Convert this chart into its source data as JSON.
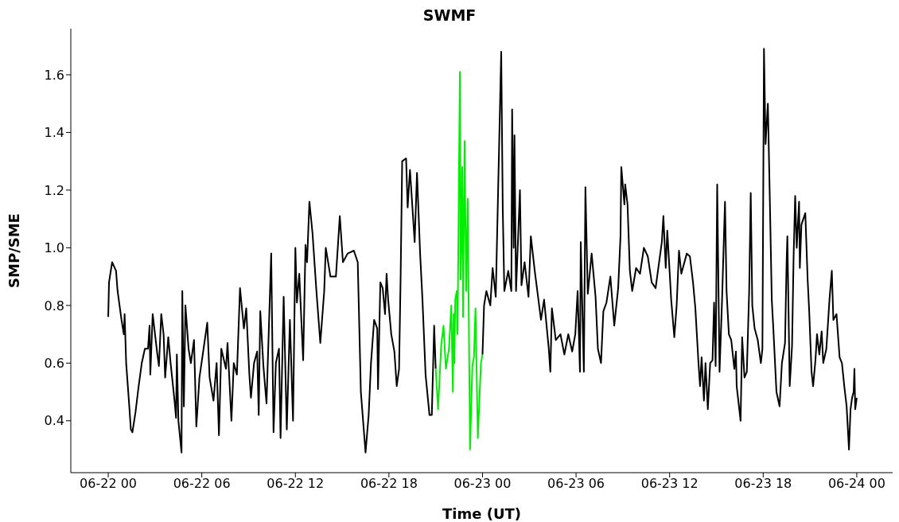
{
  "chart_data": {
    "type": "line",
    "title": "SWMF",
    "xlabel": "Time (UT)",
    "ylabel": "SMP/SME",
    "xlim": [
      "--06-21T21:36",
      "--06-24T02:18"
    ],
    "ylim": [
      0.22,
      1.76
    ],
    "xticks": [
      {
        "value": "--06-22T00:00",
        "label": "06-22 00"
      },
      {
        "value": "--06-22T06:00",
        "label": "06-22 06"
      },
      {
        "value": "--06-22T12:00",
        "label": "06-22 12"
      },
      {
        "value": "--06-22T18:00",
        "label": "06-22 18"
      },
      {
        "value": "--06-23T00:00",
        "label": "06-23 00"
      },
      {
        "value": "--06-23T06:00",
        "label": "06-23 06"
      },
      {
        "value": "--06-23T12:00",
        "label": "06-23 12"
      },
      {
        "value": "--06-23T18:00",
        "label": "06-23 18"
      },
      {
        "value": "--06-24T00:00",
        "label": "06-24 00"
      }
    ],
    "yticks": [
      0.4,
      0.6,
      0.8,
      {
        "value": 1,
        "label": "1.0"
      },
      1.2,
      1.4,
      1.6
    ],
    "series": [
      {
        "color": "#000000",
        "x": [
          "--06-22T00:00",
          "--06-22T00:03",
          "--06-22T00:15",
          "--06-22T00:30",
          "--06-22T00:36",
          "--06-22T00:51",
          "--06-22T01:00",
          "--06-22T01:03",
          "--06-22T01:09",
          "--06-22T01:21",
          "--06-22T01:27",
          "--06-22T01:33",
          "--06-22T01:45",
          "--06-22T01:57",
          "--06-22T02:09",
          "--06-22T02:21",
          "--06-22T02:33",
          "--06-22T02:39",
          "--06-22T02:42",
          "--06-22T02:51",
          "--06-22T03:09",
          "--06-22T03:15",
          "--06-22T03:24",
          "--06-22T03:33",
          "--06-22T03:39",
          "--06-22T03:51",
          "--06-22T04:00",
          "--06-22T04:15",
          "--06-22T04:21",
          "--06-22T04:24",
          "--06-22T04:30",
          "--06-22T04:42",
          "--06-22T04:45",
          "--06-22T04:51",
          "--06-22T04:57",
          "--06-22T05:09",
          "--06-22T05:18",
          "--06-22T05:30",
          "--06-22T05:39",
          "--06-22T05:51",
          "--06-22T06:21",
          "--06-22T06:30",
          "--06-22T06:45",
          "--06-22T06:57",
          "--06-22T07:06",
          "--06-22T07:15",
          "--06-22T07:33",
          "--06-22T07:39",
          "--06-22T07:54",
          "--06-22T08:03",
          "--06-22T08:15",
          "--06-22T08:27",
          "--06-22T08:42",
          "--06-22T08:51",
          "--06-22T09:03",
          "--06-22T09:09",
          "--06-22T09:21",
          "--06-22T09:33",
          "--06-22T09:39",
          "--06-22T09:45",
          "--06-22T09:57",
          "--06-22T10:09",
          "--06-22T10:27",
          "--06-22T10:36",
          "--06-22T10:45",
          "--06-22T10:57",
          "--06-22T11:03",
          "--06-22T11:15",
          "--06-22T11:27",
          "--06-22T11:39",
          "--06-22T11:51",
          "--06-22T12:00",
          "--06-22T12:06",
          "--06-22T12:15",
          "--06-22T12:30",
          "--06-22T12:39",
          "--06-22T12:45",
          "--06-22T12:54",
          "--06-22T13:06",
          "--06-22T13:21",
          "--06-22T13:36",
          "--06-22T13:51",
          "--06-22T13:57",
          "--06-22T14:15",
          "--06-22T14:36",
          "--06-22T14:51",
          "--06-22T15:03",
          "--06-22T15:21",
          "--06-22T15:45",
          "--06-22T16:00",
          "--06-22T16:12",
          "--06-22T16:30",
          "--06-22T16:42",
          "--06-22T16:51",
          "--06-22T17:03",
          "--06-22T17:15",
          "--06-22T17:18",
          "--06-22T17:27",
          "--06-22T17:36",
          "--06-22T17:45",
          "--06-22T17:51",
          "--06-22T17:57",
          "--06-22T18:09",
          "--06-22T18:21",
          "--06-22T18:30",
          "--06-22T18:39",
          "--06-22T18:45",
          "--06-22T18:51",
          "--06-22T19:06",
          "--06-22T19:12",
          "--06-22T19:21",
          "--06-22T19:39",
          "--06-22T19:48",
          "--06-22T20:00",
          "--06-22T20:09",
          "--06-22T20:21",
          "--06-22T20:36",
          "--06-22T20:45",
          "--06-22T20:54",
          "--06-22T21:00"
        ],
        "values": [
          0.76,
          0.88,
          0.95,
          0.92,
          0.85,
          0.75,
          0.7,
          0.77,
          0.6,
          0.45,
          0.37,
          0.36,
          0.43,
          0.52,
          0.6,
          0.65,
          0.65,
          0.73,
          0.56,
          0.77,
          0.63,
          0.59,
          0.77,
          0.7,
          0.55,
          0.69,
          0.6,
          0.47,
          0.41,
          0.63,
          0.4,
          0.29,
          0.85,
          0.45,
          0.8,
          0.65,
          0.6,
          0.68,
          0.38,
          0.55,
          0.74,
          0.55,
          0.47,
          0.6,
          0.35,
          0.65,
          0.58,
          0.67,
          0.4,
          0.6,
          0.56,
          0.86,
          0.72,
          0.79,
          0.56,
          0.48,
          0.6,
          0.64,
          0.42,
          0.78,
          0.59,
          0.46,
          0.98,
          0.36,
          0.6,
          0.65,
          0.34,
          0.83,
          0.37,
          0.75,
          0.4,
          1.0,
          0.81,
          0.91,
          0.61,
          1.01,
          0.95,
          1.16,
          1.05,
          0.85,
          0.67,
          0.85,
          1.0,
          0.9,
          0.9,
          1.11,
          0.95,
          0.98,
          0.99,
          0.95,
          0.5,
          0.29,
          0.42,
          0.6,
          0.75,
          0.72,
          0.51,
          0.88,
          0.86,
          0.77,
          0.91,
          0.82,
          0.7,
          0.64,
          0.52,
          0.58,
          0.9,
          1.3,
          1.31,
          1.14,
          1.27,
          1.02,
          1.26,
          0.98,
          0.82,
          0.56,
          0.42,
          0.42,
          0.73,
          0.58
        ]
      },
      {
        "color": "#00ee00",
        "x": [
          "--06-22T21:00",
          "--06-22T21:09",
          "--06-22T21:21",
          "--06-22T21:30",
          "--06-22T21:39",
          "--06-22T21:51",
          "--06-22T22:00",
          "--06-22T22:06",
          "--06-22T22:09",
          "--06-22T22:12",
          "--06-22T22:15",
          "--06-22T22:21",
          "--06-22T22:24",
          "--06-22T22:33",
          "--06-22T22:36",
          "--06-22T22:42",
          "--06-22T22:45",
          "--06-22T22:51",
          "--06-22T22:57",
          "--06-22T23:03",
          "--06-22T23:12",
          "--06-22T23:21",
          "--06-22T23:27",
          "--06-22T23:33",
          "--06-22T23:42",
          "--06-22T23:54",
          "--06-23T00:00"
        ],
        "values": [
          0.58,
          0.44,
          0.66,
          0.73,
          0.58,
          0.65,
          0.8,
          0.5,
          0.77,
          0.6,
          0.82,
          0.85,
          0.7,
          1.61,
          0.89,
          1.28,
          0.76,
          1.37,
          0.85,
          1.17,
          0.3,
          0.59,
          0.62,
          0.79,
          0.34,
          0.6,
          0.63
        ]
      },
      {
        "color": "#000000",
        "x": [
          "--06-23T00:00",
          "--06-23T00:06",
          "--06-23T00:15",
          "--06-23T00:30",
          "--06-23T00:39",
          "--06-23T00:51",
          "--06-23T01:12",
          "--06-23T01:18",
          "--06-23T01:24",
          "--06-23T01:39",
          "--06-23T01:51",
          "--06-23T01:54",
          "--06-23T02:00",
          "--06-23T02:03",
          "--06-23T02:09",
          "--06-23T02:24",
          "--06-23T02:30",
          "--06-23T02:42",
          "--06-23T02:57",
          "--06-23T03:06",
          "--06-23T03:21",
          "--06-23T03:45",
          "--06-23T03:57",
          "--06-23T04:15",
          "--06-23T04:21",
          "--06-23T04:27",
          "--06-23T04:42",
          "--06-23T05:00",
          "--06-23T05:15",
          "--06-23T05:30",
          "--06-23T05:45",
          "--06-23T05:57",
          "--06-23T06:06",
          "--06-23T06:15",
          "--06-23T06:18",
          "--06-23T06:30",
          "--06-23T06:36",
          "--06-23T06:45",
          "--06-23T07:00",
          "--06-23T07:15",
          "--06-23T07:24",
          "--06-23T07:36",
          "--06-23T07:45",
          "--06-23T07:57",
          "--06-23T08:12",
          "--06-23T08:27",
          "--06-23T08:42",
          "--06-23T08:51",
          "--06-23T08:54",
          "--06-23T09:06",
          "--06-23T09:09",
          "--06-23T09:18",
          "--06-23T09:27",
          "--06-23T09:36",
          "--06-23T09:51",
          "--06-23T10:06",
          "--06-23T10:21",
          "--06-23T10:36",
          "--06-23T10:51",
          "--06-23T11:06",
          "--06-23T11:15",
          "--06-23T11:30",
          "--06-23T11:36",
          "--06-23T11:45",
          "--06-23T11:51",
          "--06-23T12:06",
          "--06-23T12:18",
          "--06-23T12:27",
          "--06-23T12:36",
          "--06-23T12:45",
          "--06-23T13:06",
          "--06-23T13:18",
          "--06-23T13:30",
          "--06-23T13:39",
          "--06-23T13:51",
          "--06-23T13:57",
          "--06-23T14:03",
          "--06-23T14:12",
          "--06-23T14:18",
          "--06-23T14:27",
          "--06-23T14:36",
          "--06-23T14:45",
          "--06-23T14:51",
          "--06-23T14:57",
          "--06-23T15:03",
          "--06-23T15:12",
          "--06-23T15:21",
          "--06-23T15:33",
          "--06-23T15:39",
          "--06-23T15:48",
          "--06-23T15:57",
          "--06-23T16:09",
          "--06-23T16:15",
          "--06-23T16:18",
          "--06-23T16:33",
          "--06-23T16:39",
          "--06-23T16:48",
          "--06-23T16:57",
          "--06-23T17:06",
          "--06-23T17:12",
          "--06-23T17:18",
          "--06-23T17:27",
          "--06-23T17:39",
          "--06-23T17:51",
          "--06-23T17:57",
          "--06-23T18:03",
          "--06-23T18:09",
          "--06-23T18:18",
          "--06-23T18:27",
          "--06-23T18:33",
          "--06-23T18:39",
          "--06-23T18:51",
          "--06-23T19:03",
          "--06-23T19:12",
          "--06-23T19:24",
          "--06-23T19:30",
          "--06-23T19:33",
          "--06-23T19:42",
          "--06-23T19:51",
          "--06-23T19:57",
          "--06-23T20:03",
          "--06-23T20:09",
          "--06-23T20:18",
          "--06-23T20:21",
          "--06-23T20:27",
          "--06-23T20:42",
          "--06-23T20:51",
          "--06-23T20:57",
          "--06-23T21:06",
          "--06-23T21:12",
          "--06-23T21:21",
          "--06-23T21:27",
          "--06-23T21:36",
          "--06-23T21:45",
          "--06-23T21:51",
          "--06-23T22:03",
          "--06-23T22:15",
          "--06-23T22:24",
          "--06-23T22:30",
          "--06-23T22:42",
          "--06-23T22:54",
          "--06-23T23:03",
          "--06-23T23:12",
          "--06-23T23:21",
          "--06-23T23:27",
          "--06-23T23:30",
          "--06-23T23:36",
          "--06-23T23:42",
          "--06-23T23:48",
          "--06-23T23:51",
          "--06-23T23:54",
          "--06-24T00:00"
        ],
        "values": [
          0.63,
          0.8,
          0.85,
          0.8,
          0.93,
          0.83,
          1.68,
          1.13,
          0.85,
          0.92,
          0.85,
          1.48,
          1.0,
          1.39,
          0.85,
          1.2,
          0.87,
          0.95,
          0.83,
          1.04,
          0.92,
          0.75,
          0.82,
          0.65,
          0.57,
          0.79,
          0.68,
          0.7,
          0.63,
          0.7,
          0.64,
          0.7,
          0.85,
          0.57,
          1.02,
          0.57,
          1.21,
          0.84,
          0.98,
          0.83,
          0.65,
          0.6,
          0.78,
          0.81,
          0.9,
          0.73,
          0.86,
          1.04,
          1.28,
          1.15,
          1.22,
          1.15,
          0.92,
          0.85,
          0.93,
          0.91,
          1.0,
          0.97,
          0.88,
          0.86,
          0.92,
          1.02,
          1.11,
          0.93,
          1.06,
          0.82,
          0.69,
          0.8,
          0.99,
          0.91,
          0.98,
          0.97,
          0.88,
          0.79,
          0.6,
          0.52,
          0.62,
          0.47,
          0.6,
          0.44,
          0.6,
          0.61,
          0.81,
          0.59,
          1.22,
          0.57,
          0.8,
          1.16,
          0.85,
          0.7,
          0.68,
          0.58,
          0.64,
          0.52,
          0.4,
          0.69,
          0.55,
          0.57,
          0.85,
          1.19,
          0.8,
          0.72,
          0.68,
          0.6,
          0.65,
          1.69,
          1.36,
          1.5,
          1.1,
          0.82,
          0.72,
          0.5,
          0.45,
          0.6,
          0.67,
          0.95,
          1.04,
          0.52,
          0.66,
          0.97,
          1.18,
          1.0,
          1.16,
          0.93,
          1.08,
          1.12,
          0.89,
          0.78,
          0.57,
          0.52,
          0.61,
          0.7,
          0.63,
          0.71,
          0.6,
          0.65,
          0.82,
          0.92,
          0.75,
          0.77,
          0.62,
          0.6,
          0.52,
          0.45,
          0.35,
          0.3,
          0.44,
          0.48,
          0.5,
          0.58,
          0.44,
          0.48
        ]
      }
    ]
  }
}
